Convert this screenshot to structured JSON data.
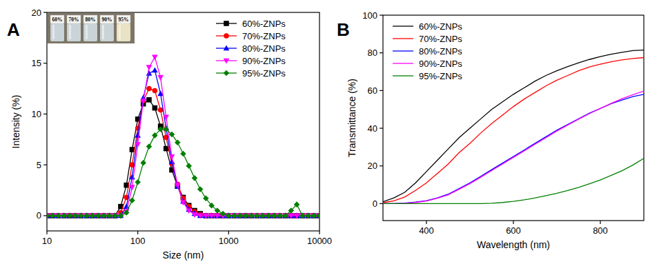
{
  "chart_data": [
    {
      "type": "line",
      "title": "A",
      "x_label": "Size (nm)",
      "y_label": "Intensity (%)",
      "log": "x",
      "grid": false,
      "legend": "upper right",
      "annotations": [
        "60%",
        "70%",
        "80%",
        "90%",
        "95%"
      ],
      "xlim": [
        10,
        10000
      ],
      "xticks": [
        10,
        100,
        1000,
        10000
      ],
      "ylim": [
        -1.5,
        20
      ],
      "yticks": [
        0,
        5,
        10,
        15,
        20
      ],
      "x": [
        10,
        11.5,
        13.3,
        15.4,
        17.8,
        20.5,
        23.7,
        27.4,
        31.6,
        36.5,
        42.2,
        48.7,
        56.2,
        64.9,
        75.0,
        86.6,
        100,
        115,
        133,
        154,
        178,
        205,
        237,
        274,
        316,
        365,
        422,
        487,
        562,
        649,
        750,
        866,
        1000,
        1155,
        1334,
        1540,
        1778,
        2054,
        2371,
        2738,
        3162,
        3652,
        4217,
        4870,
        5623,
        6494,
        7499,
        8660,
        10000
      ],
      "series": [
        {
          "name": "60%-ZNPs",
          "color": "#000000",
          "marker": "square",
          "line_style": "solid",
          "values": [
            0,
            0,
            0,
            0,
            0,
            0,
            0,
            0,
            0,
            0,
            0,
            0,
            0,
            0.9,
            3.0,
            6.5,
            9.5,
            11.0,
            11.4,
            10.6,
            8.8,
            6.6,
            4.5,
            2.9,
            1.8,
            1.0,
            0.5,
            0.2,
            0,
            0,
            0,
            0,
            0,
            0,
            0,
            0,
            0,
            0,
            0,
            0,
            0,
            0,
            0,
            0,
            0,
            0,
            0,
            0,
            0
          ]
        },
        {
          "name": "70%-ZNPs",
          "color": "#ff0000",
          "marker": "circle",
          "line_style": "solid",
          "values": [
            0,
            0,
            0,
            0,
            0,
            0,
            0,
            0,
            0,
            0,
            0,
            0,
            0,
            0.3,
            1.8,
            5.0,
            8.6,
            11.3,
            12.5,
            12.3,
            10.4,
            7.7,
            5.1,
            3.1,
            1.7,
            0.9,
            0.4,
            0.1,
            0,
            0,
            0,
            0,
            0,
            0,
            0,
            0,
            0,
            0,
            0,
            0,
            0,
            0,
            0,
            0,
            0,
            0,
            0,
            0,
            0
          ]
        },
        {
          "name": "80%-ZNPs",
          "color": "#0000ff",
          "marker": "triangle",
          "line_style": "solid",
          "values": [
            0,
            0,
            0,
            0,
            0,
            0,
            0,
            0,
            0,
            0,
            0,
            0,
            0,
            0,
            0.9,
            3.8,
            7.9,
            11.6,
            14.0,
            14.3,
            12.0,
            8.6,
            5.3,
            2.9,
            1.4,
            0.6,
            0.2,
            0,
            0,
            0,
            0,
            0,
            0,
            0,
            0,
            0,
            0,
            0,
            0,
            0,
            0,
            0,
            0,
            0,
            0,
            0,
            0,
            0,
            0
          ]
        },
        {
          "name": "90%-ZNPs",
          "color": "#ff00ff",
          "marker": "triangle-down",
          "line_style": "solid",
          "values": [
            0,
            0,
            0,
            0,
            0,
            0,
            0,
            0,
            0,
            0,
            0,
            0,
            0,
            0,
            0.4,
            2.8,
            7.0,
            11.3,
            14.6,
            15.6,
            13.6,
            9.7,
            5.8,
            3.0,
            1.3,
            0.5,
            0.1,
            0,
            0,
            0,
            0,
            0,
            0,
            0,
            0,
            0,
            0,
            0,
            0,
            0,
            0,
            0,
            0,
            0,
            0,
            0,
            0,
            0,
            0
          ]
        },
        {
          "name": "95%-ZNPs",
          "color": "#008000",
          "marker": "diamond",
          "line_style": "solid",
          "values": [
            0,
            0,
            0,
            0,
            0,
            0,
            0,
            0,
            0,
            0,
            0,
            0,
            0,
            0,
            0.3,
            1.5,
            3.3,
            5.2,
            6.8,
            7.9,
            8.5,
            8.5,
            8.0,
            7.2,
            6.1,
            4.9,
            3.7,
            2.6,
            1.7,
            1.0,
            0.5,
            0.2,
            0,
            0,
            0,
            0,
            0,
            0,
            0,
            0,
            0,
            0,
            0,
            0.5,
            1.1,
            0,
            0,
            0,
            0
          ]
        }
      ]
    },
    {
      "type": "line",
      "title": "B",
      "x_label": "Wavelength (nm)",
      "y_label": "Transmittance (%)",
      "grid": false,
      "legend": "upper left",
      "xlim": [
        300,
        900
      ],
      "xticks": [
        400,
        600,
        800
      ],
      "ylim": [
        -9,
        100
      ],
      "yticks": [
        0,
        20,
        40,
        60,
        80,
        100
      ],
      "x": [
        300,
        325,
        350,
        375,
        400,
        425,
        450,
        475,
        500,
        525,
        550,
        575,
        600,
        625,
        650,
        675,
        700,
        725,
        750,
        775,
        800,
        825,
        850,
        875,
        900
      ],
      "series": [
        {
          "name": "60%-ZNPs",
          "color": "#000000",
          "line_style": "solid",
          "values": [
            1,
            3,
            6,
            11,
            17,
            23,
            29,
            35,
            40,
            45,
            50,
            54,
            58,
            61.5,
            65,
            68,
            70.5,
            72.7,
            74.7,
            76.5,
            78,
            79.3,
            80.3,
            81.2,
            81.5
          ]
        },
        {
          "name": "70%-ZNPs",
          "color": "#ff0000",
          "line_style": "solid",
          "values": [
            0.5,
            1.5,
            3.5,
            7,
            11,
            16,
            21,
            27,
            32,
            37.5,
            42.5,
            47,
            51.5,
            55.5,
            59,
            62.5,
            65.5,
            68,
            70.5,
            72.5,
            74,
            75.3,
            76.3,
            77,
            77.5
          ]
        },
        {
          "name": "80%-ZNPs",
          "color": "#0000ff",
          "line_style": "solid",
          "values": [
            0,
            0,
            0.3,
            0.8,
            1.6,
            3,
            5,
            8,
            11,
            14.5,
            18,
            21.5,
            25,
            28.5,
            32,
            35.5,
            39,
            42,
            45,
            48,
            50.5,
            53,
            55,
            56.8,
            58
          ]
        },
        {
          "name": "90%-ZNPs",
          "color": "#ff00ff",
          "line_style": "solid",
          "values": [
            0,
            0,
            0.2,
            0.6,
            1.4,
            2.8,
            4.7,
            7.6,
            10.6,
            14,
            17.5,
            21,
            24.5,
            28,
            31.5,
            35,
            38.5,
            41.7,
            44.8,
            47.8,
            50.5,
            53.2,
            55.7,
            57.8,
            59.7
          ]
        },
        {
          "name": "95%-ZNPs",
          "color": "#008000",
          "line_style": "solid",
          "values": [
            0,
            0,
            0,
            0,
            0,
            0,
            0,
            0,
            0,
            0,
            0.2,
            0.6,
            1.2,
            2,
            3,
            4.2,
            5.5,
            7,
            8.6,
            10.5,
            12.5,
            15,
            17.5,
            20.5,
            24
          ]
        }
      ]
    }
  ]
}
